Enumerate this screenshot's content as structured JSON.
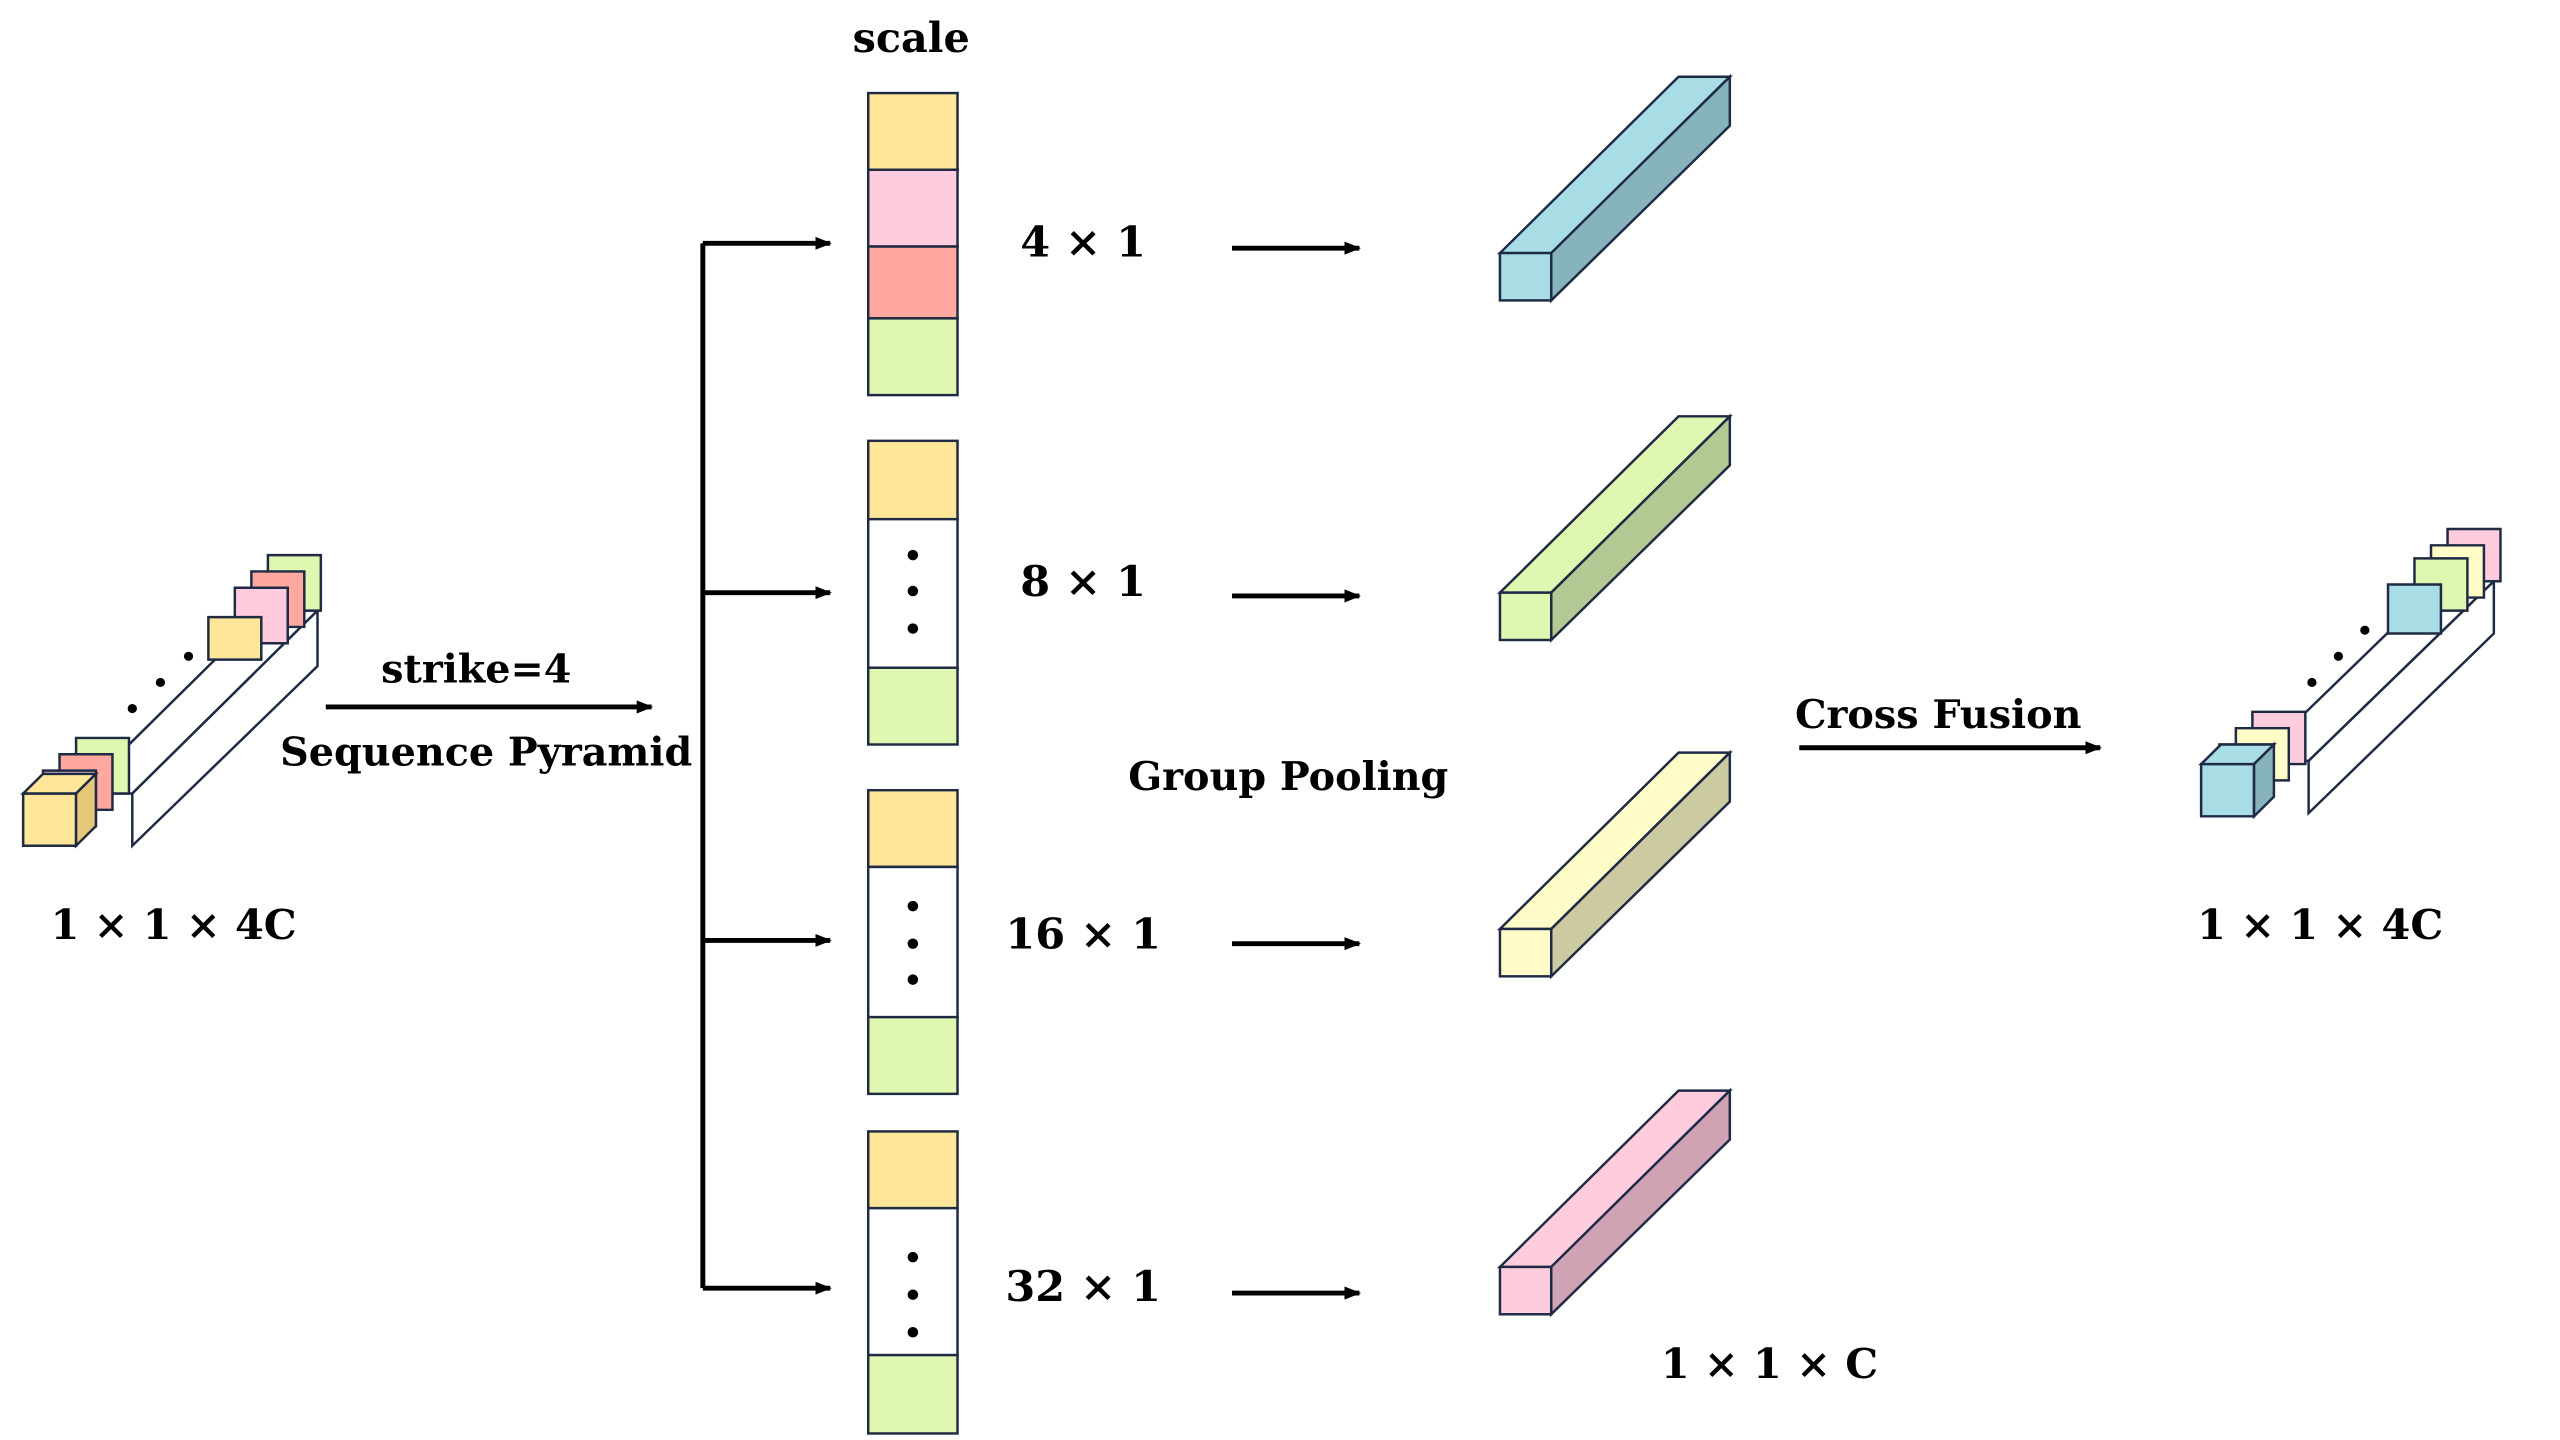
{
  "labels": {
    "scale": "scale",
    "strike": "strike=4",
    "sequence_pyramid": "Sequence Pyramid",
    "group_pooling": "Group Pooling",
    "cross_fusion": "Cross Fusion",
    "input_dim": "1 × 1 × 4C",
    "output_dim": "1 × 1 × 4C",
    "pooled_dim": "1 × 1 × C"
  },
  "scales": [
    {
      "label": "4 × 1"
    },
    {
      "label": "8 × 1"
    },
    {
      "label": "16 × 1"
    },
    {
      "label": "32 × 1"
    }
  ],
  "colors": {
    "yellow": "#FFE699",
    "pink": "#FFCCDD",
    "salmon": "#FFA8A0",
    "green": "#DFF7B0",
    "cyan": "#A8DDE6",
    "light_yellow": "#FFFCC8",
    "stroke": "#1F2A44"
  }
}
